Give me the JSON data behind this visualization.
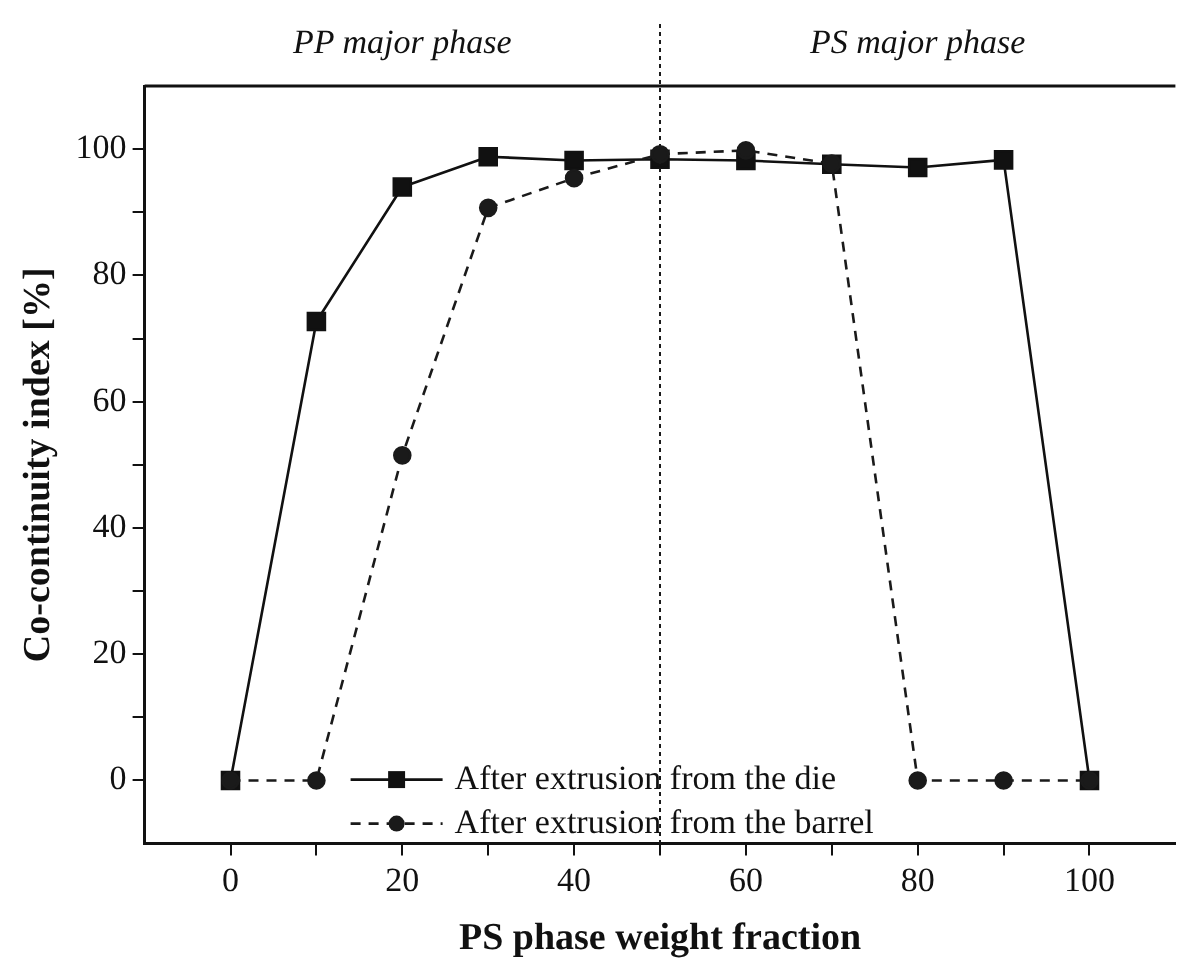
{
  "chart_data": {
    "type": "line",
    "xlabel": "PS phase weight fraction",
    "ylabel": "Co-continuity index [%]",
    "x": [
      0,
      10,
      20,
      30,
      40,
      50,
      60,
      70,
      80,
      90,
      100
    ],
    "series": [
      {
        "name": "After extrusion from the die",
        "color": "#111111",
        "marker": "square",
        "line_style": "solid",
        "values": [
          0,
          72.7,
          94,
          98.8,
          98.2,
          98.4,
          98.2,
          97.6,
          97.1,
          98.3,
          0
        ]
      },
      {
        "name": "After extrusion from the barrel",
        "color": "#1a1a1a",
        "marker": "circle",
        "line_style": "dashed",
        "values": [
          0,
          0,
          51.5,
          90.7,
          95.4,
          99.2,
          99.8,
          97.7,
          0,
          0,
          0
        ]
      }
    ],
    "xlim": [
      -10,
      110
    ],
    "ylim": [
      -10,
      110
    ],
    "xticks": [
      0,
      {
        "value": 10,
        "label": null
      },
      20,
      {
        "value": 30,
        "label": null
      },
      40,
      {
        "value": 50,
        "label": null
      },
      60,
      {
        "value": 70,
        "label": null
      },
      80,
      {
        "value": 90,
        "label": null
      },
      100
    ],
    "yticks": [
      0,
      {
        "value": 10,
        "label": null
      },
      20,
      {
        "value": 30,
        "label": null
      },
      40,
      {
        "value": 50,
        "label": null
      },
      60,
      {
        "value": 70,
        "label": null
      },
      80,
      {
        "value": 90,
        "label": null
      },
      100
    ],
    "ref_lines": [
      {
        "axis": "x",
        "value": 50,
        "line_style": "dotted",
        "color": "#1a1a1a"
      }
    ],
    "annotations": [
      "PP major phase",
      "PS major phase"
    ],
    "grid": false,
    "legend": "bottom"
  }
}
